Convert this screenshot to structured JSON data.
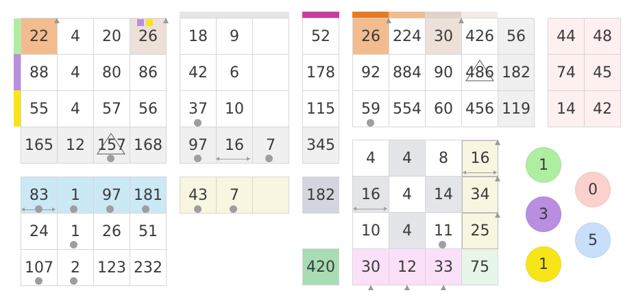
{
  "colors": {
    "green": "#aeeea0",
    "purple": "#b98ee0",
    "yellow": "#f7e51a",
    "orange": "#f2bc8f",
    "taupe": "#ece0d8",
    "gray": "#f0f0f0",
    "blue": "#cbe8f5",
    "cream": "#f8f5e0",
    "pink": "#fbe0fa",
    "slate": "#d3d6de",
    "mint": "#a8dcb4",
    "paleGreen": "#e8f6ea",
    "lightGray": "#e4e5e9",
    "magenta": "#c83c9c",
    "darkOrange": "#e67a22",
    "peach": "#fdf0ee"
  },
  "puzzles": {
    "p1": [
      [
        "22",
        "4",
        "20",
        "26"
      ],
      [
        "88",
        "4",
        "80",
        "86"
      ],
      [
        "55",
        "4",
        "57",
        "56"
      ],
      [
        "165",
        "12",
        "157",
        "168"
      ]
    ],
    "p2": [
      [
        "18",
        "9",
        ""
      ],
      [
        "42",
        "6",
        ""
      ],
      [
        "37",
        "10",
        ""
      ],
      [
        "97",
        "16",
        "7"
      ]
    ],
    "p3": [
      [
        "52"
      ],
      [
        "178"
      ],
      [
        "115"
      ],
      [
        "345"
      ]
    ],
    "p4": [
      [
        "26",
        "224",
        "30",
        "426",
        "56"
      ],
      [
        "92",
        "884",
        "90",
        "486",
        "182"
      ],
      [
        "59",
        "554",
        "60",
        "456",
        "119"
      ]
    ],
    "p5": [
      [
        "44",
        "48"
      ],
      [
        "74",
        "45"
      ],
      [
        "14",
        "42"
      ]
    ],
    "p6": [
      [
        "83",
        "1",
        "97",
        "181"
      ],
      [
        "24",
        "1",
        "26",
        "51"
      ],
      [
        "107",
        "2",
        "123",
        "232"
      ]
    ],
    "p7": [
      [
        "43",
        "7",
        ""
      ]
    ],
    "p8": [
      [
        "182"
      ]
    ],
    "p9": [
      [
        "420"
      ]
    ],
    "p10": [
      [
        "4",
        "4",
        "8",
        "16"
      ],
      [
        "16",
        "4",
        "14",
        "34"
      ],
      [
        "10",
        "4",
        "11",
        "25"
      ],
      [
        "30",
        "12",
        "33",
        "75"
      ]
    ]
  },
  "circles": [
    "1",
    "3",
    "1",
    "0",
    "5"
  ]
}
